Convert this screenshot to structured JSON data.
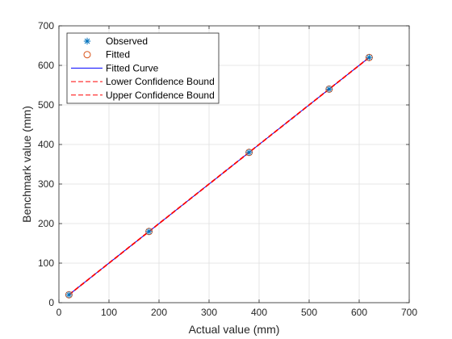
{
  "chart_data": {
    "type": "line",
    "title": "",
    "xlabel": "Actual value (mm)",
    "ylabel": "Benchmark value (mm)",
    "xlim": [
      0,
      700
    ],
    "ylim": [
      0,
      700
    ],
    "xticks": [
      0,
      100,
      200,
      300,
      400,
      500,
      600,
      700
    ],
    "yticks": [
      0,
      100,
      200,
      300,
      400,
      500,
      600,
      700
    ],
    "grid": true,
    "legend_position": "top-left",
    "series": [
      {
        "name": "Observed",
        "kind": "marker-asterisk",
        "color": "#0072BD",
        "x": [
          20,
          180,
          380,
          540,
          620
        ],
        "y": [
          20,
          180,
          380,
          540,
          620
        ]
      },
      {
        "name": "Fitted",
        "kind": "marker-circle",
        "color": "#D95319",
        "x": [
          20,
          180,
          380,
          540,
          620
        ],
        "y": [
          20,
          180,
          380,
          540,
          620
        ]
      },
      {
        "name": "Fitted Curve",
        "kind": "line-solid",
        "color": "#0000FF",
        "x": [
          20,
          620
        ],
        "y": [
          20,
          620
        ]
      },
      {
        "name": "Lower Confidence Bound",
        "kind": "line-dashed",
        "color": "#FF0000",
        "x": [
          20,
          620
        ],
        "y": [
          19,
          619
        ]
      },
      {
        "name": "Upper Confidence Bound",
        "kind": "line-dashed",
        "color": "#FF0000",
        "x": [
          20,
          620
        ],
        "y": [
          21,
          621
        ]
      }
    ]
  }
}
